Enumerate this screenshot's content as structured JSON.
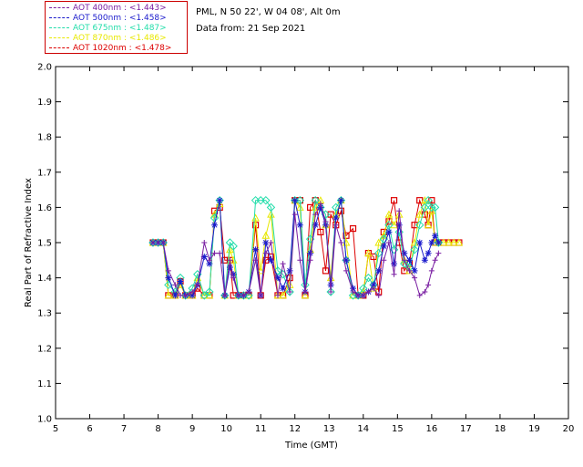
{
  "header": {
    "location": "PML, N 50 22', W 04 08', Alt 0m",
    "date_line": "Data from: 21 Sep 2021"
  },
  "legend": [
    {
      "label": "AOT  400nm : <1.443>",
      "color": "#7a1fa2"
    },
    {
      "label": "AOT  500nm : <1.458>",
      "color": "#1a1acc"
    },
    {
      "label": "AOT  675nm : <1.487>",
      "color": "#22ddaa"
    },
    {
      "label": "AOT  870nm : <1.486>",
      "color": "#e8e800"
    },
    {
      "label": "AOT 1020nm : <1.478>",
      "color": "#dd0000"
    }
  ],
  "chart_data": {
    "type": "scatter",
    "xlabel": "Time (GMT)",
    "ylabel": "Real Part of Refractive Index",
    "xlim": [
      5,
      20
    ],
    "ylim": [
      1.0,
      2.0
    ],
    "xticks": [
      "5",
      "6",
      "7",
      "8",
      "9",
      "10",
      "11",
      "12",
      "13",
      "14",
      "15",
      "16",
      "17",
      "18",
      "19",
      "20"
    ],
    "yticks": [
      "1.0",
      "1.1",
      "1.2",
      "1.3",
      "1.4",
      "1.5",
      "1.6",
      "1.7",
      "1.8",
      "1.9",
      "2.0"
    ],
    "series": [
      {
        "name": "AOT  400nm : <1.443>",
        "color": "#7a1fa2",
        "marker": "plus",
        "x": [
          7.85,
          8.0,
          8.15,
          8.3,
          8.5,
          8.65,
          8.8,
          9.0,
          9.15,
          9.35,
          9.5,
          9.65,
          9.8,
          9.95,
          10.1,
          10.2,
          10.35,
          10.5,
          10.65,
          10.85,
          11.0,
          11.15,
          11.3,
          11.5,
          11.65,
          11.85,
          12.0,
          12.15,
          12.3,
          12.45,
          12.6,
          12.75,
          12.9,
          13.05,
          13.2,
          13.35,
          13.5,
          13.7,
          13.85,
          14.0,
          14.15,
          14.3,
          14.45,
          14.6,
          14.75,
          14.9,
          15.05,
          15.2,
          15.35,
          15.5,
          15.65,
          15.8,
          15.9,
          16.0,
          16.1,
          16.2
        ],
        "y": [
          1.5,
          1.5,
          1.5,
          1.42,
          1.38,
          1.35,
          1.35,
          1.36,
          1.38,
          1.5,
          1.45,
          1.47,
          1.47,
          1.35,
          1.45,
          1.4,
          1.35,
          1.35,
          1.36,
          1.45,
          1.35,
          1.47,
          1.5,
          1.35,
          1.44,
          1.36,
          1.58,
          1.45,
          1.36,
          1.45,
          1.58,
          1.61,
          1.56,
          1.36,
          1.55,
          1.5,
          1.42,
          1.36,
          1.35,
          1.35,
          1.36,
          1.37,
          1.35,
          1.45,
          1.5,
          1.41,
          1.59,
          1.45,
          1.42,
          1.4,
          1.35,
          1.36,
          1.38,
          1.42,
          1.45,
          1.47
        ]
      },
      {
        "name": "AOT  500nm : <1.458>",
        "color": "#1a1acc",
        "marker": "star",
        "x": [
          7.85,
          8.0,
          8.15,
          8.3,
          8.5,
          8.65,
          8.8,
          9.0,
          9.15,
          9.35,
          9.5,
          9.65,
          9.8,
          9.95,
          10.1,
          10.2,
          10.35,
          10.5,
          10.65,
          10.85,
          11.0,
          11.15,
          11.3,
          11.5,
          11.65,
          11.85,
          12.0,
          12.15,
          12.3,
          12.45,
          12.6,
          12.75,
          12.9,
          13.05,
          13.2,
          13.35,
          13.5,
          13.7,
          13.85,
          14.0,
          14.15,
          14.3,
          14.45,
          14.6,
          14.75,
          14.9,
          15.05,
          15.2,
          15.35,
          15.5,
          15.65,
          15.8,
          15.9,
          16.0,
          16.1,
          16.2
        ],
        "y": [
          1.5,
          1.5,
          1.5,
          1.4,
          1.35,
          1.39,
          1.35,
          1.35,
          1.38,
          1.46,
          1.44,
          1.55,
          1.62,
          1.35,
          1.43,
          1.41,
          1.35,
          1.35,
          1.36,
          1.48,
          1.35,
          1.5,
          1.45,
          1.4,
          1.37,
          1.42,
          1.62,
          1.55,
          1.36,
          1.47,
          1.55,
          1.6,
          1.55,
          1.38,
          1.57,
          1.62,
          1.45,
          1.37,
          1.35,
          1.35,
          1.36,
          1.38,
          1.42,
          1.49,
          1.53,
          1.44,
          1.55,
          1.47,
          1.45,
          1.42,
          1.5,
          1.45,
          1.47,
          1.5,
          1.52,
          1.5
        ]
      },
      {
        "name": "AOT  675nm : <1.487>",
        "color": "#22ddaa",
        "marker": "diamond",
        "x": [
          7.85,
          8.0,
          8.15,
          8.3,
          8.5,
          8.65,
          8.8,
          9.0,
          9.15,
          9.35,
          9.5,
          9.65,
          9.8,
          9.95,
          10.1,
          10.2,
          10.35,
          10.5,
          10.65,
          10.85,
          11.0,
          11.15,
          11.3,
          11.5,
          11.65,
          11.85,
          12.0,
          12.15,
          12.3,
          12.45,
          12.6,
          12.75,
          12.9,
          13.05,
          13.2,
          13.35,
          13.5,
          13.7,
          13.85,
          14.0,
          14.15,
          14.3,
          14.45,
          14.6,
          14.75,
          14.9,
          15.05,
          15.2,
          15.35,
          15.5,
          15.65,
          15.8,
          15.9,
          16.0,
          16.1,
          16.2
        ],
        "y": [
          1.5,
          1.5,
          1.5,
          1.38,
          1.36,
          1.4,
          1.35,
          1.37,
          1.41,
          1.35,
          1.36,
          1.57,
          1.62,
          1.35,
          1.5,
          1.49,
          1.35,
          1.35,
          1.35,
          1.62,
          1.62,
          1.62,
          1.6,
          1.42,
          1.41,
          1.36,
          1.62,
          1.62,
          1.38,
          1.51,
          1.62,
          1.6,
          1.58,
          1.36,
          1.6,
          1.62,
          1.45,
          1.35,
          1.35,
          1.37,
          1.4,
          1.38,
          1.47,
          1.51,
          1.55,
          1.48,
          1.53,
          1.44,
          1.43,
          1.48,
          1.55,
          1.6,
          1.62,
          1.6,
          1.6,
          1.5
        ]
      },
      {
        "name": "AOT  870nm : <1.486>",
        "color": "#e8e800",
        "marker": "triangle",
        "x": [
          7.85,
          8.0,
          8.15,
          8.3,
          8.5,
          8.65,
          8.8,
          9.0,
          9.15,
          9.35,
          9.5,
          9.65,
          9.8,
          9.95,
          10.1,
          10.2,
          10.35,
          10.5,
          10.65,
          10.85,
          11.0,
          11.15,
          11.3,
          11.5,
          11.65,
          11.85,
          12.0,
          12.15,
          12.3,
          12.45,
          12.6,
          12.75,
          12.9,
          13.05,
          13.2,
          13.35,
          13.5,
          13.7,
          13.85,
          14.0,
          14.15,
          14.3,
          14.45,
          14.6,
          14.75,
          14.9,
          15.05,
          15.2,
          15.35,
          15.5,
          15.65,
          15.8,
          15.9,
          16.0,
          16.1,
          16.2,
          16.35,
          16.5,
          16.65,
          16.8
        ],
        "y": [
          1.5,
          1.5,
          1.5,
          1.35,
          1.35,
          1.38,
          1.35,
          1.35,
          1.4,
          1.35,
          1.35,
          1.58,
          1.61,
          1.35,
          1.48,
          1.45,
          1.35,
          1.35,
          1.35,
          1.57,
          1.42,
          1.52,
          1.58,
          1.35,
          1.35,
          1.38,
          1.62,
          1.6,
          1.35,
          1.48,
          1.6,
          1.62,
          1.55,
          1.4,
          1.58,
          1.62,
          1.5,
          1.35,
          1.35,
          1.36,
          1.47,
          1.37,
          1.5,
          1.52,
          1.58,
          1.55,
          1.58,
          1.45,
          1.42,
          1.5,
          1.58,
          1.62,
          1.55,
          1.59,
          1.5,
          1.5,
          1.5,
          1.5,
          1.5,
          1.5
        ]
      },
      {
        "name": "AOT 1020nm : <1.478>",
        "color": "#dd0000",
        "marker": "square",
        "x": [
          7.85,
          8.0,
          8.15,
          8.3,
          8.5,
          8.65,
          8.8,
          9.0,
          9.15,
          9.35,
          9.5,
          9.65,
          9.8,
          9.95,
          10.1,
          10.2,
          10.35,
          10.5,
          10.65,
          10.85,
          11.0,
          11.15,
          11.3,
          11.5,
          11.65,
          11.85,
          12.0,
          12.15,
          12.3,
          12.45,
          12.6,
          12.75,
          12.9,
          13.05,
          13.2,
          13.35,
          13.5,
          13.7,
          13.85,
          14.0,
          14.15,
          14.3,
          14.45,
          14.6,
          14.75,
          14.9,
          15.05,
          15.2,
          15.35,
          15.5,
          15.65,
          15.8,
          15.9,
          16.0,
          16.1,
          16.2,
          16.35,
          16.5,
          16.65,
          16.8
        ],
        "y": [
          1.5,
          1.5,
          1.5,
          1.35,
          1.35,
          1.39,
          1.35,
          1.35,
          1.37,
          1.35,
          1.35,
          1.59,
          1.6,
          1.45,
          1.45,
          1.35,
          1.35,
          1.35,
          1.35,
          1.55,
          1.35,
          1.45,
          1.46,
          1.35,
          1.35,
          1.4,
          1.62,
          1.62,
          1.35,
          1.6,
          1.62,
          1.53,
          1.42,
          1.58,
          1.55,
          1.59,
          1.52,
          1.54,
          1.35,
          1.35,
          1.47,
          1.46,
          1.36,
          1.53,
          1.56,
          1.62,
          1.5,
          1.42,
          1.44,
          1.55,
          1.62,
          1.58,
          1.55,
          1.62,
          1.5,
          1.5,
          1.5,
          1.5,
          1.5,
          1.5
        ]
      }
    ]
  }
}
